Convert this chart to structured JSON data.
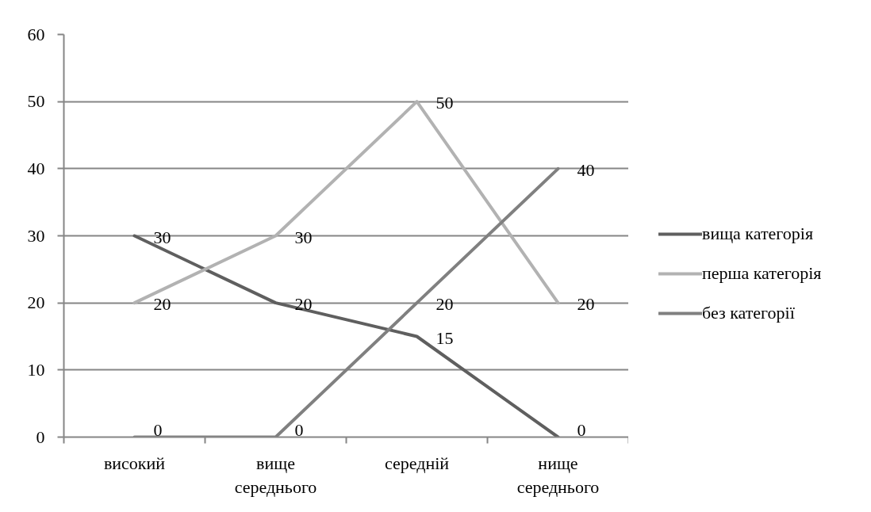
{
  "chart_data": {
    "type": "line",
    "categories": [
      "високий",
      "вище середнього",
      "середній",
      "нище середнього"
    ],
    "series": [
      {
        "name": "вища категорія",
        "color": "#5f5f5f",
        "values": [
          30,
          20,
          15,
          0
        ]
      },
      {
        "name": "перша категорія",
        "color": "#b2b2b2",
        "values": [
          20,
          30,
          50,
          20
        ]
      },
      {
        "name": "без категорії",
        "color": "#808080",
        "values": [
          0,
          0,
          20,
          40
        ]
      }
    ],
    "ylim": [
      0,
      60
    ],
    "yticks": [
      0,
      10,
      20,
      30,
      40,
      50,
      60
    ],
    "grid": "y",
    "legend": "right",
    "data_labels": true,
    "line_style": "solid"
  }
}
